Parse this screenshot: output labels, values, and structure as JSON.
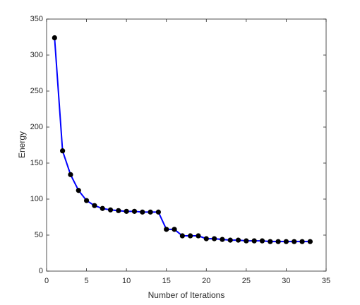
{
  "chart_data": {
    "type": "line",
    "xlabel": "Number of Iterations",
    "ylabel": "Energy",
    "x": [
      1,
      2,
      3,
      4,
      5,
      6,
      7,
      8,
      9,
      10,
      11,
      12,
      13,
      14,
      15,
      16,
      17,
      18,
      19,
      20,
      21,
      22,
      23,
      24,
      25,
      26,
      27,
      28,
      29,
      30,
      31,
      32,
      33
    ],
    "series": [
      {
        "color": "#0000ff",
        "marker_color": "#000000",
        "values": [
          324,
          167,
          134,
          112,
          98,
          91,
          87,
          85,
          84,
          83,
          83,
          82,
          82,
          82,
          58,
          58,
          49,
          49,
          49,
          45,
          45,
          44,
          43,
          43,
          42,
          42,
          42,
          41,
          41,
          41,
          41,
          41,
          41
        ]
      }
    ],
    "xlim": [
      0,
      35
    ],
    "xticks": [
      0,
      5,
      10,
      15,
      20,
      25,
      30,
      35
    ],
    "ylim": [
      0,
      350
    ],
    "yticks": [
      0,
      50,
      100,
      150,
      200,
      250,
      300,
      350
    ]
  }
}
